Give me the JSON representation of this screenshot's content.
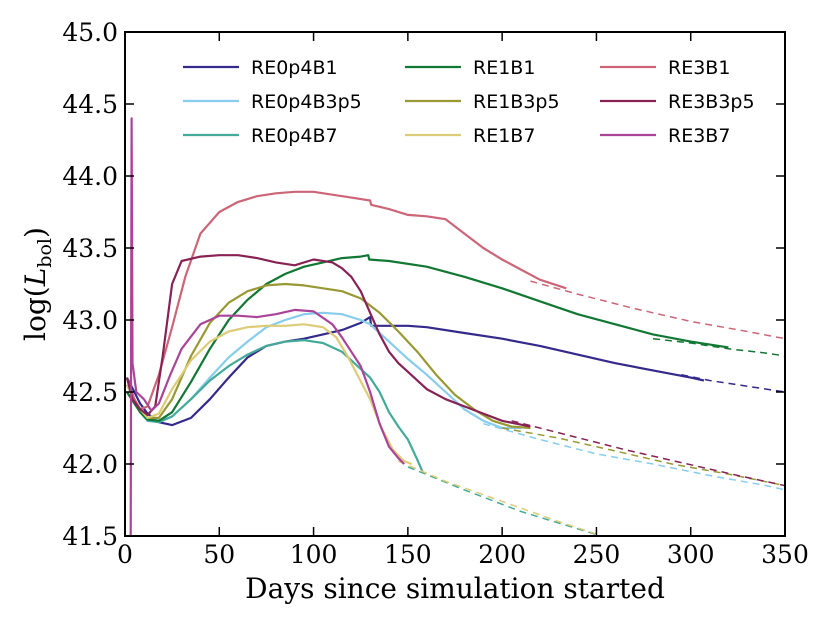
{
  "chart_data": {
    "type": "line",
    "xlabel": "Days since simulation started",
    "ylabel_main": "log(",
    "ylabel_italic": "L",
    "ylabel_sub": "bol",
    "ylabel_close": ")",
    "xlim": [
      0,
      350
    ],
    "ylim": [
      41.5,
      45.0
    ],
    "xticks": [
      "0",
      "50",
      "100",
      "150",
      "200",
      "250",
      "300",
      "350"
    ],
    "yticks": [
      "41.5",
      "42.0",
      "42.5",
      "43.0",
      "43.5",
      "44.0",
      "44.5",
      "45.0"
    ],
    "legend_position": "top",
    "series": [
      {
        "name": "RE0p4B1",
        "color": "#332a8c",
        "x": [
          1,
          5,
          8,
          12,
          18,
          25,
          35,
          45,
          55,
          65,
          75,
          85,
          95,
          105,
          115,
          125,
          130,
          130.5,
          140,
          150,
          160,
          180,
          200,
          220,
          240,
          260,
          280,
          300,
          307
        ],
        "y": [
          42.6,
          42.5,
          42.42,
          42.35,
          42.29,
          42.27,
          42.32,
          42.45,
          42.6,
          42.74,
          42.82,
          42.85,
          42.87,
          42.9,
          42.93,
          42.98,
          43.02,
          42.96,
          42.96,
          42.96,
          42.95,
          42.91,
          42.87,
          42.82,
          42.76,
          42.7,
          42.65,
          42.6,
          42.58
        ],
        "dash_x": [
          295,
          310,
          325,
          340,
          350
        ],
        "dash_y": [
          42.62,
          42.58,
          42.55,
          42.52,
          42.5
        ]
      },
      {
        "name": "RE0p4B3p5",
        "color": "#88ccee",
        "x": [
          1,
          5,
          8,
          12,
          18,
          25,
          35,
          45,
          55,
          65,
          75,
          85,
          95,
          105,
          115,
          125,
          130,
          140,
          150,
          160,
          170,
          180,
          190,
          200,
          210
        ],
        "y": [
          42.55,
          42.45,
          42.38,
          42.32,
          42.3,
          42.33,
          42.45,
          42.6,
          42.74,
          42.85,
          42.95,
          43.0,
          43.04,
          43.05,
          43.04,
          43.0,
          42.97,
          42.85,
          42.73,
          42.62,
          42.5,
          42.38,
          42.3,
          42.25,
          42.25
        ],
        "dash_x": [
          190,
          220,
          250,
          280,
          310,
          340,
          350
        ],
        "dash_y": [
          42.28,
          42.17,
          42.07,
          42.0,
          41.92,
          41.85,
          41.82
        ]
      },
      {
        "name": "RE0p4B7",
        "color": "#44aa99",
        "x": [
          1,
          5,
          8,
          12,
          18,
          25,
          35,
          45,
          55,
          65,
          75,
          85,
          95,
          105,
          115,
          120,
          125,
          130,
          135,
          140,
          145,
          150,
          155,
          158
        ],
        "y": [
          42.55,
          42.45,
          42.36,
          42.3,
          42.29,
          42.33,
          42.45,
          42.58,
          42.68,
          42.76,
          42.82,
          42.85,
          42.86,
          42.84,
          42.78,
          42.72,
          42.66,
          42.6,
          42.5,
          42.36,
          42.26,
          42.17,
          42.03,
          41.94
        ],
        "dash_x": [
          150,
          180,
          210,
          240,
          260
        ],
        "dash_y": [
          41.98,
          41.82,
          41.67,
          41.55,
          41.47
        ]
      },
      {
        "name": "RE1B1",
        "color": "#117733",
        "x": [
          1,
          5,
          8,
          12,
          18,
          25,
          35,
          45,
          55,
          65,
          75,
          85,
          95,
          105,
          115,
          125,
          129,
          129.5,
          140,
          160,
          180,
          200,
          220,
          240,
          260,
          280,
          300,
          320
        ],
        "y": [
          42.5,
          42.42,
          42.36,
          42.31,
          42.3,
          42.36,
          42.57,
          42.8,
          43.0,
          43.14,
          43.25,
          43.32,
          43.37,
          43.4,
          43.43,
          43.44,
          43.45,
          43.42,
          43.41,
          43.37,
          43.3,
          43.22,
          43.13,
          43.04,
          42.97,
          42.9,
          42.85,
          42.81
        ],
        "dash_x": [
          280,
          300,
          320,
          340,
          350
        ],
        "dash_y": [
          42.87,
          42.84,
          42.8,
          42.77,
          42.75
        ]
      },
      {
        "name": "RE1B3p5",
        "color": "#999933",
        "x": [
          1,
          5,
          8,
          12,
          18,
          25,
          35,
          45,
          55,
          65,
          75,
          85,
          95,
          105,
          115,
          125,
          135,
          145,
          155,
          165,
          175,
          185,
          195,
          205,
          215
        ],
        "y": [
          42.55,
          42.45,
          42.38,
          42.32,
          42.32,
          42.45,
          42.75,
          42.98,
          43.12,
          43.2,
          43.24,
          43.25,
          43.24,
          43.22,
          43.2,
          43.15,
          43.05,
          42.92,
          42.78,
          42.62,
          42.48,
          42.38,
          42.3,
          42.26,
          42.25
        ],
        "dash_x": [
          200,
          230,
          260,
          290,
          320,
          350
        ],
        "dash_y": [
          42.25,
          42.18,
          42.09,
          42.0,
          41.93,
          41.85
        ]
      },
      {
        "name": "RE1B7",
        "color": "#ddcc77",
        "x": [
          1,
          5,
          8,
          12,
          18,
          25,
          35,
          45,
          55,
          65,
          75,
          85,
          95,
          105,
          112,
          118,
          124,
          130,
          136,
          142,
          148,
          152
        ],
        "y": [
          42.55,
          42.45,
          42.38,
          42.32,
          42.35,
          42.52,
          42.72,
          42.85,
          42.92,
          42.95,
          42.96,
          42.96,
          42.97,
          42.95,
          42.88,
          42.75,
          42.6,
          42.45,
          42.25,
          42.1,
          42.02,
          42.0
        ],
        "dash_x": [
          145,
          170,
          200,
          230,
          260
        ],
        "dash_y": [
          42.02,
          41.88,
          41.74,
          41.6,
          41.47
        ]
      },
      {
        "name": "RE3B1",
        "color": "#cc6677",
        "x": [
          1,
          5,
          8,
          12,
          18,
          25,
          32,
          40,
          50,
          60,
          70,
          80,
          90,
          100,
          110,
          120,
          130,
          130.5,
          140,
          150,
          160,
          170,
          180,
          190,
          200,
          210,
          220,
          234
        ],
        "y": [
          42.6,
          42.45,
          42.38,
          42.4,
          42.62,
          42.95,
          43.3,
          43.6,
          43.75,
          43.82,
          43.86,
          43.88,
          43.89,
          43.89,
          43.87,
          43.85,
          43.83,
          43.8,
          43.77,
          43.73,
          43.72,
          43.7,
          43.6,
          43.5,
          43.42,
          43.35,
          43.28,
          43.22
        ],
        "dash_x": [
          215,
          240,
          270,
          300,
          330,
          350
        ],
        "dash_y": [
          43.27,
          43.18,
          43.08,
          42.99,
          42.92,
          42.87
        ]
      },
      {
        "name": "RE3B3p5",
        "color": "#882255",
        "x": [
          1,
          4,
          8,
          12,
          16,
          20,
          25,
          30,
          40,
          50,
          60,
          70,
          80,
          90,
          100,
          110,
          115,
          120,
          125,
          130,
          135,
          140,
          145,
          150,
          160,
          170,
          180,
          190,
          200,
          215
        ],
        "y": [
          42.6,
          42.45,
          42.38,
          42.34,
          42.4,
          42.75,
          43.25,
          43.41,
          43.44,
          43.45,
          43.45,
          43.43,
          43.4,
          43.38,
          43.42,
          43.4,
          43.36,
          43.3,
          43.2,
          43.05,
          42.9,
          42.78,
          42.7,
          42.64,
          42.52,
          42.45,
          42.4,
          42.35,
          42.3,
          42.26
        ],
        "dash_x": [
          205,
          235,
          265,
          295,
          325,
          350
        ],
        "dash_y": [
          42.3,
          42.2,
          42.1,
          42.01,
          41.92,
          41.85
        ]
      },
      {
        "name": "RE3B7",
        "color": "#aa4499",
        "x": [
          3,
          3.5,
          4,
          6,
          10,
          14,
          18,
          24,
          30,
          40,
          50,
          60,
          70,
          80,
          90,
          100,
          110,
          115,
          120,
          125,
          130,
          135,
          140,
          145,
          148
        ],
        "y": [
          41.5,
          44.4,
          42.7,
          42.5,
          42.45,
          42.37,
          42.42,
          42.62,
          42.8,
          42.97,
          43.03,
          43.03,
          43.02,
          43.04,
          43.07,
          43.06,
          42.97,
          42.88,
          42.78,
          42.68,
          42.5,
          42.28,
          42.12,
          42.04,
          42.0
        ],
        "dash_x": [],
        "dash_y": []
      }
    ]
  }
}
